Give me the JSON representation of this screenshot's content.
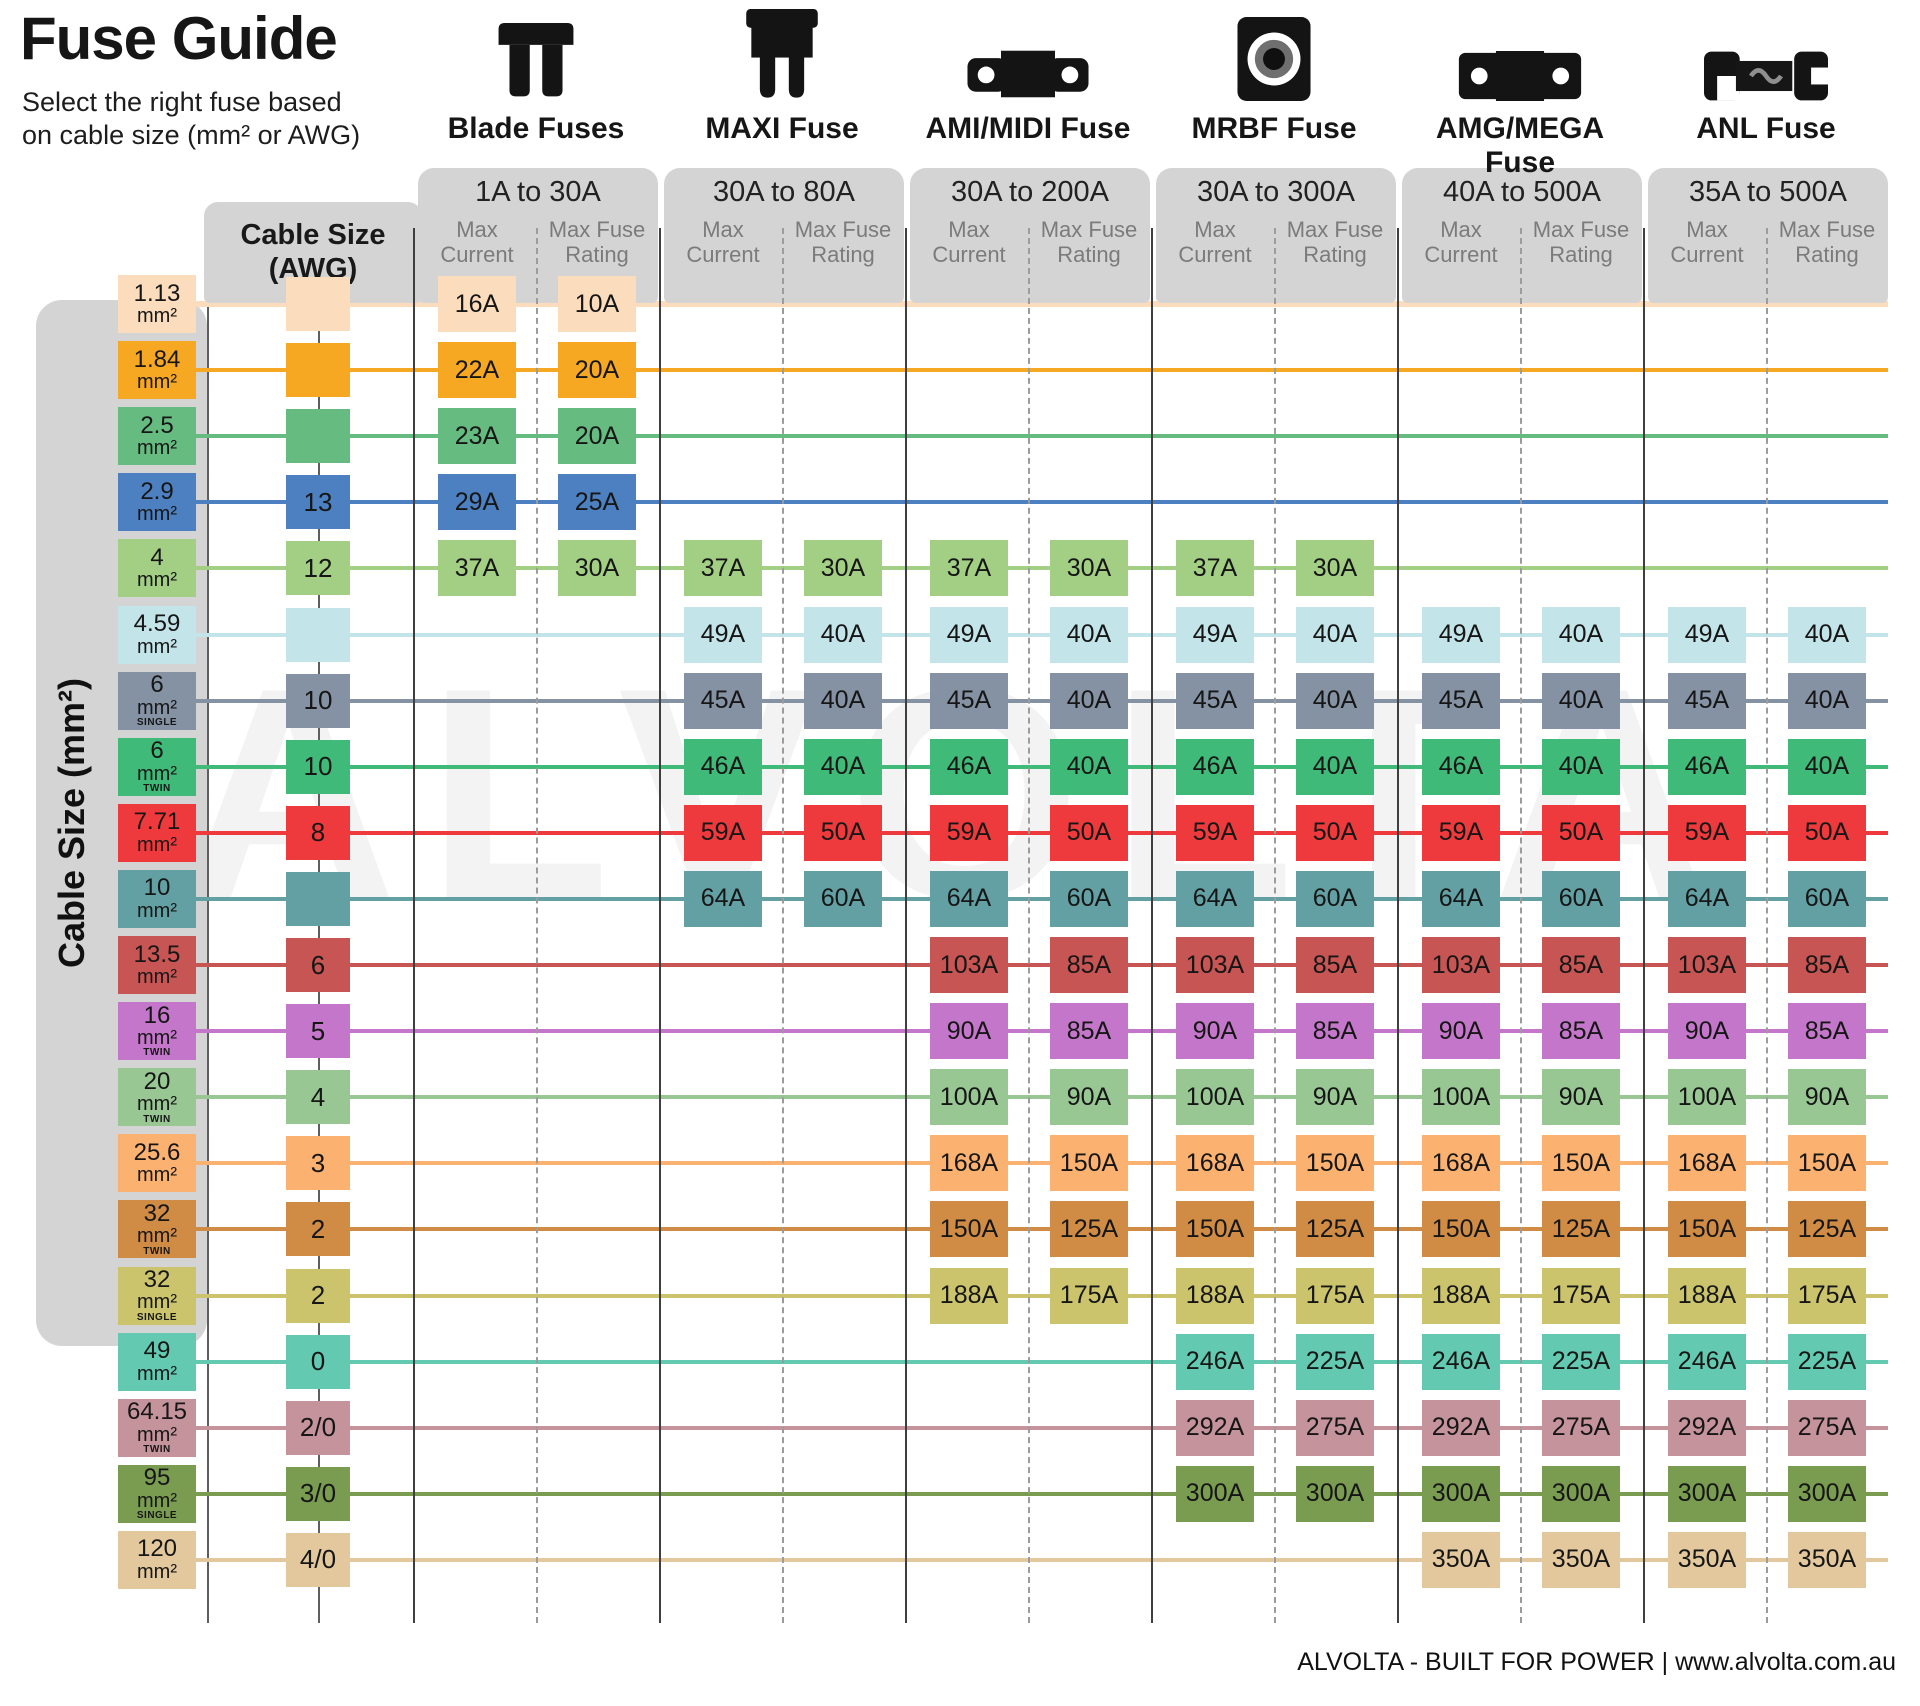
{
  "page": {
    "title": "Fuse Guide",
    "subtitle_line1": "Select the right fuse based",
    "subtitle_line2": "on cable size (mm² or AWG)",
    "watermark": "ALVOLTA",
    "footer": "ALVOLTA - BUILT FOR POWER | www.alvolta.com.au"
  },
  "axis": {
    "mm2_label": "Cable Size (mm²)",
    "awg_label_line1": "Cable Size",
    "awg_label_line2": "(AWG)"
  },
  "chart_data": {
    "type": "table",
    "title": "Fuse Guide",
    "groups": [
      {
        "id": "blade",
        "label": "Blade Fuses",
        "range": "1A to 30A",
        "icon": "blade-fuse-icon",
        "columns": [
          "Max Current",
          "Max Fuse Rating"
        ]
      },
      {
        "id": "maxi",
        "label": "MAXI Fuse",
        "range": "30A to 80A",
        "icon": "maxi-fuse-icon",
        "columns": [
          "Max Current",
          "Max Fuse Rating"
        ]
      },
      {
        "id": "ami",
        "label": "AMI/MIDI Fuse",
        "range": "30A to 200A",
        "icon": "ami-midi-fuse-icon",
        "columns": [
          "Max Current",
          "Max Fuse Rating"
        ]
      },
      {
        "id": "mrbf",
        "label": "MRBF Fuse",
        "range": "30A to 300A",
        "icon": "mrbf-fuse-icon",
        "columns": [
          "Max Current",
          "Max Fuse Rating"
        ]
      },
      {
        "id": "amg",
        "label": "AMG/MEGA Fuse",
        "range": "40A to 500A",
        "icon": "amg-mega-fuse-icon",
        "columns": [
          "Max Current",
          "Max Fuse Rating"
        ]
      },
      {
        "id": "anl",
        "label": "ANL Fuse",
        "range": "35A to 500A",
        "icon": "anl-fuse-icon",
        "columns": [
          "Max Current",
          "Max Fuse Rating"
        ]
      }
    ],
    "rows": [
      {
        "mm2": "1.13",
        "tag": "",
        "awg": "",
        "color": "#fbdcbd",
        "cells": {
          "blade": [
            "16A",
            "10A"
          ]
        }
      },
      {
        "mm2": "1.84",
        "tag": "",
        "awg": "",
        "color": "#f7a823",
        "cells": {
          "blade": [
            "22A",
            "20A"
          ]
        }
      },
      {
        "mm2": "2.5",
        "tag": "",
        "awg": "",
        "color": "#66bb80",
        "cells": {
          "blade": [
            "23A",
            "20A"
          ]
        }
      },
      {
        "mm2": "2.9",
        "tag": "",
        "awg": "13",
        "color": "#4d80c0",
        "cells": {
          "blade": [
            "29A",
            "25A"
          ]
        }
      },
      {
        "mm2": "4",
        "tag": "",
        "awg": "12",
        "color": "#a3cf85",
        "cells": {
          "blade": [
            "37A",
            "30A"
          ],
          "maxi": [
            "37A",
            "30A"
          ],
          "ami": [
            "37A",
            "30A"
          ],
          "mrbf": [
            "37A",
            "30A"
          ]
        }
      },
      {
        "mm2": "4.59",
        "tag": "",
        "awg": "",
        "color": "#c3e5ea",
        "cells": {
          "maxi": [
            "49A",
            "40A"
          ],
          "ami": [
            "49A",
            "40A"
          ],
          "mrbf": [
            "49A",
            "40A"
          ],
          "amg": [
            "49A",
            "40A"
          ],
          "anl": [
            "49A",
            "40A"
          ]
        }
      },
      {
        "mm2": "6",
        "tag": "SINGLE",
        "awg": "10",
        "color": "#8492a4",
        "cells": {
          "maxi": [
            "45A",
            "40A"
          ],
          "ami": [
            "45A",
            "40A"
          ],
          "mrbf": [
            "45A",
            "40A"
          ],
          "amg": [
            "45A",
            "40A"
          ],
          "anl": [
            "45A",
            "40A"
          ]
        }
      },
      {
        "mm2": "6",
        "tag": "TWIN",
        "awg": "10",
        "color": "#3fba78",
        "cells": {
          "maxi": [
            "46A",
            "40A"
          ],
          "ami": [
            "46A",
            "40A"
          ],
          "mrbf": [
            "46A",
            "40A"
          ],
          "amg": [
            "46A",
            "40A"
          ],
          "anl": [
            "46A",
            "40A"
          ]
        }
      },
      {
        "mm2": "7.71",
        "tag": "",
        "awg": "8",
        "color": "#ee3a3c",
        "cells": {
          "maxi": [
            "59A",
            "50A"
          ],
          "ami": [
            "59A",
            "50A"
          ],
          "mrbf": [
            "59A",
            "50A"
          ],
          "amg": [
            "59A",
            "50A"
          ],
          "anl": [
            "59A",
            "50A"
          ]
        }
      },
      {
        "mm2": "10",
        "tag": "",
        "awg": "",
        "color": "#63a0a3",
        "cells": {
          "maxi": [
            "64A",
            "60A"
          ],
          "ami": [
            "64A",
            "60A"
          ],
          "mrbf": [
            "64A",
            "60A"
          ],
          "amg": [
            "64A",
            "60A"
          ],
          "anl": [
            "64A",
            "60A"
          ]
        }
      },
      {
        "mm2": "13.5",
        "tag": "",
        "awg": "6",
        "color": "#c65553",
        "cells": {
          "ami": [
            "103A",
            "85A"
          ],
          "mrbf": [
            "103A",
            "85A"
          ],
          "amg": [
            "103A",
            "85A"
          ],
          "anl": [
            "103A",
            "85A"
          ]
        }
      },
      {
        "mm2": "16",
        "tag": "TWIN",
        "awg": "5",
        "color": "#c477ca",
        "cells": {
          "ami": [
            "90A",
            "85A"
          ],
          "mrbf": [
            "90A",
            "85A"
          ],
          "amg": [
            "90A",
            "85A"
          ],
          "anl": [
            "90A",
            "85A"
          ]
        }
      },
      {
        "mm2": "20",
        "tag": "TWIN",
        "awg": "4",
        "color": "#98c794",
        "cells": {
          "ami": [
            "100A",
            "90A"
          ],
          "mrbf": [
            "100A",
            "90A"
          ],
          "amg": [
            "100A",
            "90A"
          ],
          "anl": [
            "100A",
            "90A"
          ]
        }
      },
      {
        "mm2": "25.6",
        "tag": "",
        "awg": "3",
        "color": "#fbb170",
        "cells": {
          "ami": [
            "168A",
            "150A"
          ],
          "mrbf": [
            "168A",
            "150A"
          ],
          "amg": [
            "168A",
            "150A"
          ],
          "anl": [
            "168A",
            "150A"
          ]
        }
      },
      {
        "mm2": "32",
        "tag": "TWIN",
        "awg": "2",
        "color": "#d08b45",
        "cells": {
          "ami": [
            "150A",
            "125A"
          ],
          "mrbf": [
            "150A",
            "125A"
          ],
          "amg": [
            "150A",
            "125A"
          ],
          "anl": [
            "150A",
            "125A"
          ]
        }
      },
      {
        "mm2": "32",
        "tag": "SINGLE",
        "awg": "2",
        "color": "#cbc46d",
        "cells": {
          "ami": [
            "188A",
            "175A"
          ],
          "mrbf": [
            "188A",
            "175A"
          ],
          "amg": [
            "188A",
            "175A"
          ],
          "anl": [
            "188A",
            "175A"
          ]
        }
      },
      {
        "mm2": "49",
        "tag": "",
        "awg": "0",
        "color": "#63cab1",
        "cells": {
          "mrbf": [
            "246A",
            "225A"
          ],
          "amg": [
            "246A",
            "225A"
          ],
          "anl": [
            "246A",
            "225A"
          ]
        }
      },
      {
        "mm2": "64.15",
        "tag": "TWIN",
        "awg": "2/0",
        "color": "#c5939b",
        "cells": {
          "mrbf": [
            "292A",
            "275A"
          ],
          "amg": [
            "292A",
            "275A"
          ],
          "anl": [
            "292A",
            "275A"
          ]
        }
      },
      {
        "mm2": "95",
        "tag": "SINGLE",
        "awg": "3/0",
        "color": "#7a9c50",
        "cells": {
          "mrbf": [
            "300A",
            "300A"
          ],
          "amg": [
            "300A",
            "300A"
          ],
          "anl": [
            "300A",
            "300A"
          ]
        }
      },
      {
        "mm2": "120",
        "tag": "",
        "awg": "4/0",
        "color": "#e2c89c",
        "cells": {
          "amg": [
            "350A",
            "350A"
          ],
          "anl": [
            "350A",
            "350A"
          ]
        }
      }
    ]
  }
}
